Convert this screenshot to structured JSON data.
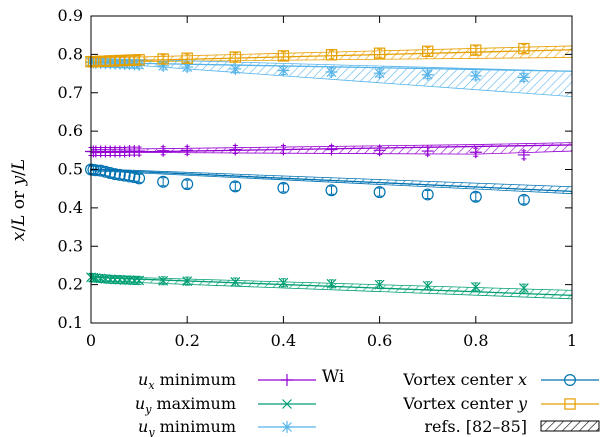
{
  "chart_data": {
    "type": "scatter",
    "xlabel": "Wi",
    "ylabel": "x/L or y/L",
    "xlim": [
      0,
      1
    ],
    "ylim": [
      0.1,
      0.9
    ],
    "x_ticks": [
      0,
      0.2,
      0.4,
      0.6,
      0.8,
      1
    ],
    "x_tick_labels": [
      "0",
      "0.2",
      "0.4",
      "0.6",
      "0.8",
      "1"
    ],
    "y_ticks": [
      0.1,
      0.2,
      0.3,
      0.4,
      0.5,
      0.6,
      0.7,
      0.8,
      0.9
    ],
    "y_tick_labels": [
      "0.1",
      "0.2",
      "0.3",
      "0.4",
      "0.5",
      "0.6",
      "0.7",
      "0.8",
      "0.9"
    ],
    "grid": false,
    "legend_position": "bottom",
    "x": [
      0,
      0.005,
      0.01,
      0.02,
      0.03,
      0.04,
      0.05,
      0.06,
      0.07,
      0.08,
      0.09,
      0.1,
      0.15,
      0.2,
      0.3,
      0.4,
      0.5,
      0.6,
      0.7,
      0.8,
      0.9
    ],
    "series": [
      {
        "name": "u_x minimum",
        "legend_main": "u",
        "legend_sub": "x",
        "legend_rest": " minimum",
        "marker": "plus",
        "color": "#9400d3",
        "values": [
          0.547,
          0.547,
          0.547,
          0.547,
          0.547,
          0.547,
          0.547,
          0.547,
          0.547,
          0.548,
          0.548,
          0.548,
          0.549,
          0.55,
          0.552,
          0.552,
          0.552,
          0.55,
          0.548,
          0.545,
          0.538
        ],
        "line_y": [
          0.544,
          0.564
        ]
      },
      {
        "name": "u_y maximum",
        "legend_main": "u",
        "legend_sub": "y",
        "legend_rest": " maximum",
        "marker": "cross",
        "color": "#009e73",
        "values": [
          0.219,
          0.218,
          0.217,
          0.216,
          0.215,
          0.214,
          0.213,
          0.213,
          0.212,
          0.212,
          0.211,
          0.211,
          0.21,
          0.209,
          0.207,
          0.205,
          0.202,
          0.2,
          0.197,
          0.194,
          0.191
        ],
        "line_y": [
          0.219,
          0.172
        ]
      },
      {
        "name": "u_y minimum",
        "legend_main": "u",
        "legend_sub": "y",
        "legend_rest": " minimum",
        "marker": "star",
        "color": "#56b4e9",
        "values": [
          0.78,
          0.779,
          0.778,
          0.778,
          0.777,
          0.777,
          0.776,
          0.776,
          0.775,
          0.775,
          0.774,
          0.773,
          0.77,
          0.767,
          0.762,
          0.758,
          0.754,
          0.751,
          0.747,
          0.744,
          0.74
        ],
        "line_y": [
          0.779,
          0.756
        ]
      },
      {
        "name": "Vortex center x",
        "legend_text": "Vortex center ",
        "legend_var": "x",
        "marker": "circle",
        "color": "#0072b2",
        "values": [
          0.5,
          0.499,
          0.498,
          0.497,
          0.494,
          0.491,
          0.488,
          0.486,
          0.484,
          0.482,
          0.48,
          0.477,
          0.468,
          0.462,
          0.456,
          0.452,
          0.446,
          0.441,
          0.435,
          0.429,
          0.421
        ],
        "line_y": [
          0.5,
          0.443
        ]
      },
      {
        "name": "Vortex center y",
        "legend_text": "Vortex center ",
        "legend_var": "y",
        "marker": "square",
        "color": "#e69f00",
        "values": [
          0.781,
          0.781,
          0.781,
          0.782,
          0.782,
          0.783,
          0.783,
          0.784,
          0.784,
          0.785,
          0.785,
          0.786,
          0.788,
          0.79,
          0.793,
          0.796,
          0.799,
          0.803,
          0.808,
          0.811,
          0.815
        ],
        "line_y": [
          0.781,
          0.812
        ]
      }
    ],
    "reference_bands": [
      {
        "color": "#e69f00",
        "x": [
          0,
          1
        ],
        "upper": [
          0.79,
          0.822
        ],
        "lower": [
          0.78,
          0.792
        ]
      },
      {
        "color": "#56b4e9",
        "x": [
          0,
          1
        ],
        "upper": [
          0.79,
          0.756
        ],
        "lower": [
          0.78,
          0.69
        ]
      },
      {
        "color": "#9400d3",
        "x": [
          0,
          0.8,
          1
        ],
        "upper": [
          0.552,
          0.565,
          0.57
        ],
        "lower": [
          0.545,
          0.54,
          0.548
        ]
      },
      {
        "color": "#0072b2",
        "x": [
          0,
          1
        ],
        "upper": [
          0.502,
          0.455
        ],
        "lower": [
          0.497,
          0.437
        ]
      },
      {
        "color": "#009e73",
        "x": [
          0,
          1
        ],
        "upper": [
          0.222,
          0.185
        ],
        "lower": [
          0.21,
          0.163
        ]
      }
    ],
    "reference_legend": "refs. [82–85]"
  }
}
